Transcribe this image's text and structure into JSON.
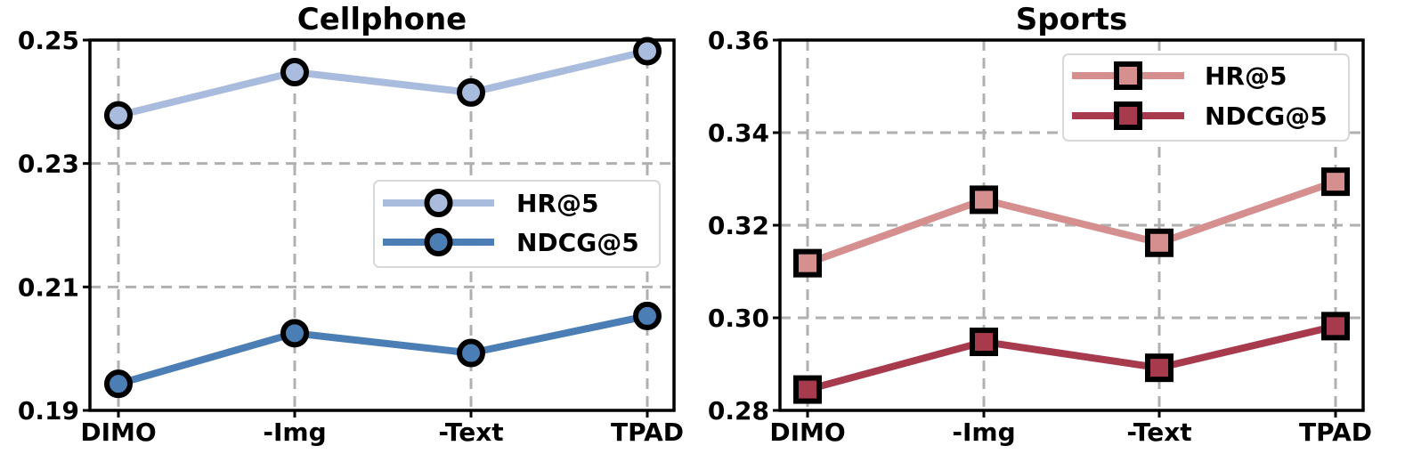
{
  "chart_data": [
    {
      "type": "line",
      "title": "Cellphone",
      "categories": [
        "DIMO",
        "-Img",
        "-Text",
        "TPAD"
      ],
      "ylim": [
        0.19,
        0.25
      ],
      "yticks": [
        "0.19",
        "0.21",
        "0.23",
        "0.25"
      ],
      "grid": true,
      "legend_position": "center-right",
      "marker": "circle",
      "series": [
        {
          "name": "HR@5",
          "color": "#a9bcdd",
          "values": [
            0.2378,
            0.2448,
            0.2415,
            0.2482
          ]
        },
        {
          "name": "NDCG@5",
          "color": "#4a7eb4",
          "values": [
            0.1943,
            0.2025,
            0.1993,
            0.2053
          ]
        }
      ]
    },
    {
      "type": "line",
      "title": "Sports",
      "categories": [
        "DIMO",
        "-Img",
        "-Text",
        "TPAD"
      ],
      "ylim": [
        0.28,
        0.36
      ],
      "yticks": [
        "0.28",
        "0.30",
        "0.32",
        "0.34",
        "0.36"
      ],
      "grid": true,
      "legend_position": "top-right",
      "marker": "square",
      "series": [
        {
          "name": "HR@5",
          "color": "#d48f8e",
          "values": [
            0.3118,
            0.3255,
            0.3162,
            0.3294
          ]
        },
        {
          "name": "NDCG@5",
          "color": "#a83a4d",
          "values": [
            0.2845,
            0.2948,
            0.2892,
            0.2982
          ]
        }
      ]
    }
  ]
}
